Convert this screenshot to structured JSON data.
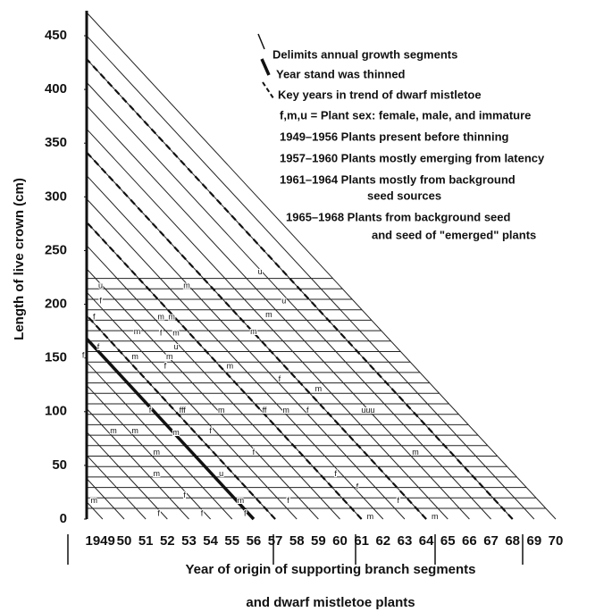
{
  "chart_data": {
    "type": "growth-diagram",
    "y_label": "Length of live crown (cm)",
    "x_label": [
      "Year of origin of supporting branch segments",
      "and dwarf mistletoe plants"
    ],
    "ylim": [
      0,
      450
    ],
    "yticks": [
      0,
      50,
      100,
      150,
      200,
      250,
      300,
      350,
      400,
      450
    ],
    "xlim": [
      1948.26,
      1970
    ],
    "xticks": [
      1949,
      {
        "value": 1950,
        "label": "50"
      },
      {
        "value": 1951,
        "label": "51"
      },
      {
        "value": 1952,
        "label": "52"
      },
      {
        "value": 1953,
        "label": "53"
      },
      {
        "value": 1954,
        "label": "54"
      },
      {
        "value": 1955,
        "label": "55"
      },
      {
        "value": 1956,
        "label": "56"
      },
      {
        "value": 1957,
        "label": "57"
      },
      {
        "value": 1958,
        "label": "58"
      },
      {
        "value": 1959,
        "label": "59"
      },
      {
        "value": 1960,
        "label": "60"
      },
      {
        "value": 1961,
        "label": "61"
      },
      {
        "value": 1962,
        "label": "62"
      },
      {
        "value": 1963,
        "label": "63"
      },
      {
        "value": 1964,
        "label": "64"
      },
      {
        "value": 1965,
        "label": "65"
      },
      {
        "value": 1966,
        "label": "66"
      },
      {
        "value": 1967,
        "label": "67"
      },
      {
        "value": 1968,
        "label": "68"
      },
      {
        "value": 1969,
        "label": "69"
      },
      {
        "value": 1970,
        "label": "70"
      }
    ],
    "thinned_year": 1956,
    "key_years": [
      1957,
      1961,
      1964,
      1968
    ],
    "legend": [
      "Delimits annual growth segments",
      "Year stand was thinned",
      "Key years in trend of dwarf mistletoe",
      "f,m,u = Plant sex: female, male, and immature",
      "1949–1956 Plants present before thinning",
      "1957–1960 Plants mostly emerging from latency",
      "1961–1964 Plants mostly from background",
      "seed sources",
      "1965–1968 Plants from background seed",
      "and seed of \"emerged\" plants"
    ],
    "plants": [
      {
        "label": "u",
        "x": 1956.3,
        "y": 230
      },
      {
        "label": "u",
        "x": 1957.4,
        "y": 203
      },
      {
        "label": "m",
        "x": 1952.9,
        "y": 217
      },
      {
        "label": "u",
        "x": 1948.9,
        "y": 217
      },
      {
        "label": "f",
        "x": 1948.9,
        "y": 203
      },
      {
        "label": "f",
        "x": 1948.6,
        "y": 188
      },
      {
        "label": "m",
        "x": 1951.7,
        "y": 188
      },
      {
        "label": "m",
        "x": 1952.2,
        "y": 188
      },
      {
        "label": "m",
        "x": 1956.7,
        "y": 190
      },
      {
        "label": "f",
        "x": 1948.8,
        "y": 160
      },
      {
        "label": "m",
        "x": 1950.6,
        "y": 174
      },
      {
        "label": "f",
        "x": 1951.7,
        "y": 173
      },
      {
        "label": "m",
        "x": 1952.4,
        "y": 173
      },
      {
        "label": "m",
        "x": 1956.0,
        "y": 174
      },
      {
        "label": "u",
        "x": 1952.4,
        "y": 160
      },
      {
        "label": "f",
        "x": 1948.1,
        "y": 152
      },
      {
        "label": "m",
        "x": 1950.5,
        "y": 151
      },
      {
        "label": "m",
        "x": 1952.1,
        "y": 151
      },
      {
        "label": "f",
        "x": 1951.9,
        "y": 142
      },
      {
        "label": "m",
        "x": 1954.9,
        "y": 142
      },
      {
        "label": "f",
        "x": 1957.2,
        "y": 130
      },
      {
        "label": "m",
        "x": 1959.0,
        "y": 121
      },
      {
        "label": "f",
        "x": 1951.2,
        "y": 101
      },
      {
        "label": "fff",
        "x": 1952.7,
        "y": 101
      },
      {
        "label": "m",
        "x": 1954.5,
        "y": 101
      },
      {
        "label": "ff",
        "x": 1956.5,
        "y": 101
      },
      {
        "label": "m",
        "x": 1957.5,
        "y": 101
      },
      {
        "label": "f",
        "x": 1958.5,
        "y": 101
      },
      {
        "label": "uuu",
        "x": 1961.3,
        "y": 101
      },
      {
        "label": "m",
        "x": 1949.5,
        "y": 82
      },
      {
        "label": "m",
        "x": 1950.5,
        "y": 82
      },
      {
        "label": "m",
        "x": 1952.4,
        "y": 80
      },
      {
        "label": "f",
        "x": 1954.0,
        "y": 82
      },
      {
        "label": "f",
        "x": 1956.0,
        "y": 62
      },
      {
        "label": "m",
        "x": 1951.5,
        "y": 62
      },
      {
        "label": "m",
        "x": 1963.5,
        "y": 62
      },
      {
        "label": "m",
        "x": 1951.5,
        "y": 42
      },
      {
        "label": "u",
        "x": 1954.5,
        "y": 42
      },
      {
        "label": "f",
        "x": 1959.8,
        "y": 42
      },
      {
        "label": "f",
        "x": 1960.8,
        "y": 30
      },
      {
        "label": "f",
        "x": 1952.8,
        "y": 22
      },
      {
        "label": "m",
        "x": 1955.4,
        "y": 17
      },
      {
        "label": "f",
        "x": 1957.6,
        "y": 17
      },
      {
        "label": "f",
        "x": 1962.7,
        "y": 17
      },
      {
        "label": "m",
        "x": 1948.6,
        "y": 17
      },
      {
        "label": "f",
        "x": 1951.6,
        "y": 5
      },
      {
        "label": "f",
        "x": 1953.6,
        "y": 5
      },
      {
        "label": "f",
        "x": 1955.6,
        "y": 5
      },
      {
        "label": "m",
        "x": 1961.4,
        "y": 2
      },
      {
        "label": "m",
        "x": 1964.4,
        "y": 2
      }
    ]
  }
}
